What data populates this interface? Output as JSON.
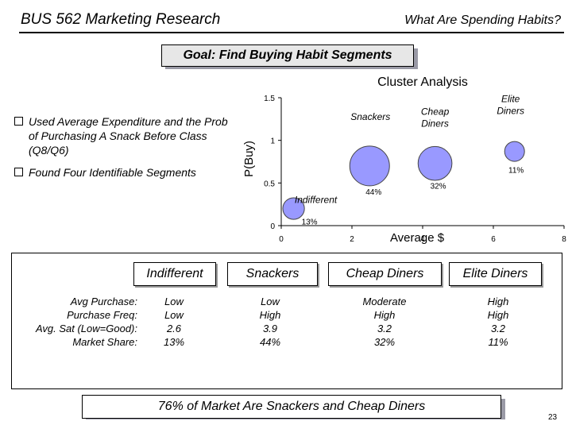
{
  "header": {
    "course": "BUS 562 Marketing Research",
    "topic": "What Are Spending Habits?"
  },
  "goal": "Goal: Find Buying Habit Segments",
  "bullets": [
    "Used Average Expenditure and the Prob of Purchasing A Snack Before Class (Q8/Q6)",
    "Found Four Identifiable Segments"
  ],
  "chart_data": {
    "type": "scatter",
    "title": "Cluster Analysis",
    "xlabel": "Average $",
    "ylabel": "P(Buy)",
    "xlim": [
      0,
      8
    ],
    "ylim": [
      0,
      1.5
    ],
    "xticks": [
      "0",
      "2",
      "4",
      "6",
      "8"
    ],
    "yticks": [
      "0",
      "0.5",
      "1",
      "1.5"
    ],
    "grid": false,
    "bubble_color": "#9999ff",
    "points": [
      {
        "name": "Indifferent",
        "x": 0.35,
        "y": 0.2,
        "share": 13,
        "share_label": "13%"
      },
      {
        "name": "Snackers",
        "x": 2.5,
        "y": 0.7,
        "share": 44,
        "share_label": "44%"
      },
      {
        "name": "Cheap Diners",
        "x": 4.35,
        "y": 0.73,
        "share": 32,
        "share_label": "32%"
      },
      {
        "name": "Elite Diners",
        "x": 6.6,
        "y": 0.87,
        "share": 11,
        "share_label": "11%"
      }
    ]
  },
  "table": {
    "segments": [
      "Indifferent",
      "Snackers",
      "Cheap Diners",
      "Elite Diners"
    ],
    "row_labels": [
      "Avg Purchase:",
      "Purchase Freq:",
      "Avg. Sat (Low=Good):",
      "Market Share:"
    ],
    "columns": [
      [
        "Low",
        "Low",
        "2.6",
        "13%"
      ],
      [
        "Low",
        "High",
        "3.9",
        "44%"
      ],
      [
        "Moderate",
        "High",
        "3.2",
        "32%"
      ],
      [
        "High",
        "High",
        "3.2",
        "11%"
      ]
    ]
  },
  "footer": "76% of Market Are Snackers and Cheap Diners",
  "page_number": "23"
}
